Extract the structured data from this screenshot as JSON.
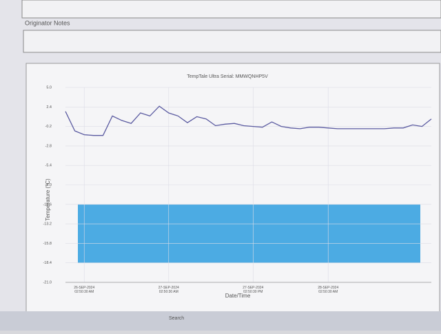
{
  "header": {
    "notes_label": "Originator Notes"
  },
  "chart_data": {
    "type": "line",
    "title": "TempTale Ultra Serial: MMWQNHP5V",
    "y_label": "Temperature (°C)",
    "x_label": "Date/Time",
    "categories": [
      null,
      null,
      "26-SEP-2024 02:50:30 AM",
      null,
      null,
      null,
      null,
      null,
      null,
      null,
      null,
      "27-SEP-2024 02:50:30 AM",
      null,
      null,
      null,
      null,
      null,
      null,
      null,
      null,
      "27-SEP-2024 02:50:30 PM",
      null,
      null,
      null,
      null,
      null,
      null,
      null,
      "28-SEP-2024 02:50:30 AM",
      null,
      null,
      null,
      null,
      null,
      null,
      null,
      null,
      null,
      null,
      null
    ],
    "series": [
      {
        "color": "#5a5aa0",
        "values": [
          1.8,
          -0.8,
          -1.3,
          -1.4,
          -1.4,
          1.2,
          0.6,
          0.2,
          1.6,
          1.2,
          2.5,
          1.6,
          1.2,
          0.3,
          1.1,
          0.8,
          -0.1,
          0.1,
          0.2,
          -0.1,
          -0.2,
          -0.3,
          0.4,
          -0.2,
          -0.4,
          -0.5,
          -0.3,
          -0.3,
          -0.4,
          -0.5,
          -0.5,
          -0.5,
          -0.5,
          -0.5,
          -0.5,
          -0.4,
          -0.4,
          0.0,
          -0.2,
          0.8
        ]
      }
    ],
    "band": {
      "range": [
        -18.4,
        -10.6
      ],
      "color": "#3aa3e0"
    },
    "ylim": [
      -21,
      5
    ],
    "yticks": [
      {
        "value": 5,
        "label": "5.0"
      },
      2.4,
      -0.2,
      -2.8,
      -5.4,
      {
        "value": -8,
        "label": "-8.0"
      },
      -10.6,
      -13.2,
      -15.8,
      -18.4,
      {
        "value": -21,
        "label": "-21.0"
      }
    ],
    "grid": true
  },
  "taskbar": {
    "search": "Search"
  }
}
